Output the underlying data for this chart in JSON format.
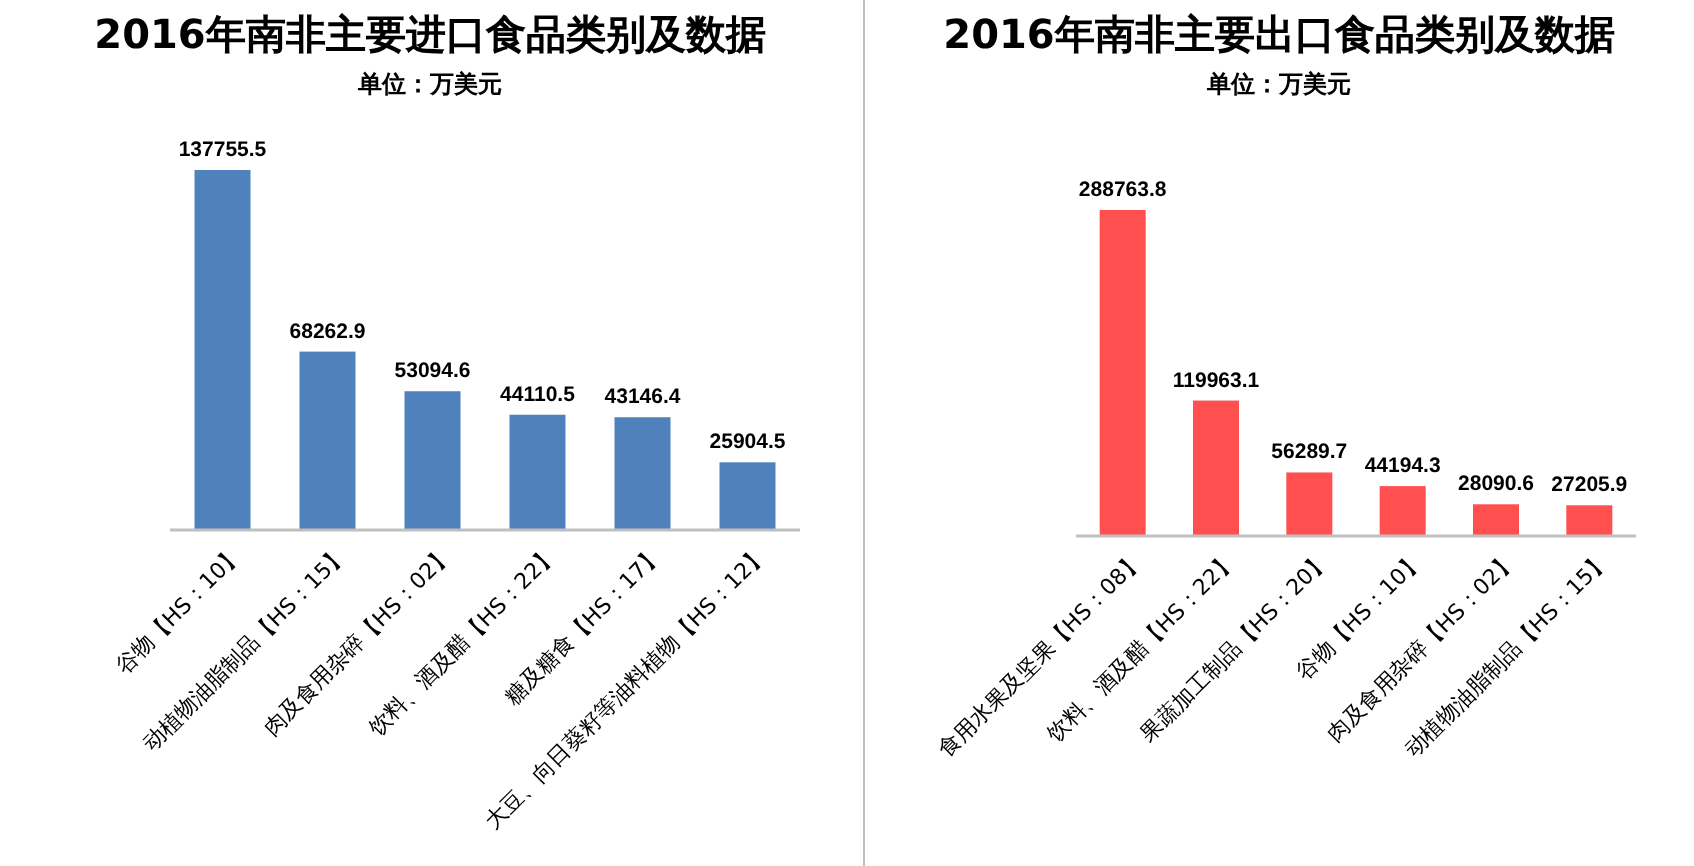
{
  "chart_data": [
    {
      "type": "bar",
      "title": "2016年南非主要进口食品类别及数据",
      "subtitle": "单位：万美元",
      "categories": [
        "谷物【HS：10】",
        "动植物油脂制品【HS：15】",
        "肉及食用杂碎【HS：02】",
        "饮料、酒及醋【HS：22】",
        "糖及糖食【HS：17】",
        "大豆、向日葵籽等油料植物【HS：12】"
      ],
      "values": [
        137755.5,
        68262.9,
        53094.6,
        44110.5,
        43146.4,
        25904.5
      ],
      "color": "#4f81bd",
      "data_labels": true
    },
    {
      "type": "bar",
      "title": "2016年南非主要出口食品类别及数据",
      "subtitle": "单位：万美元",
      "categories": [
        "食用水果及坚果【HS：08】",
        "饮料、酒及醋【HS：22】",
        "果蔬加工制品【HS：20】",
        "谷物【HS：10】",
        "肉及食用杂碎【HS：02】",
        "动植物油脂制品【HS：15】"
      ],
      "values": [
        288763.8,
        119963.1,
        56289.7,
        44194.3,
        28090.6,
        27205.9
      ],
      "color": "#ff4f4f",
      "data_labels": true
    }
  ]
}
